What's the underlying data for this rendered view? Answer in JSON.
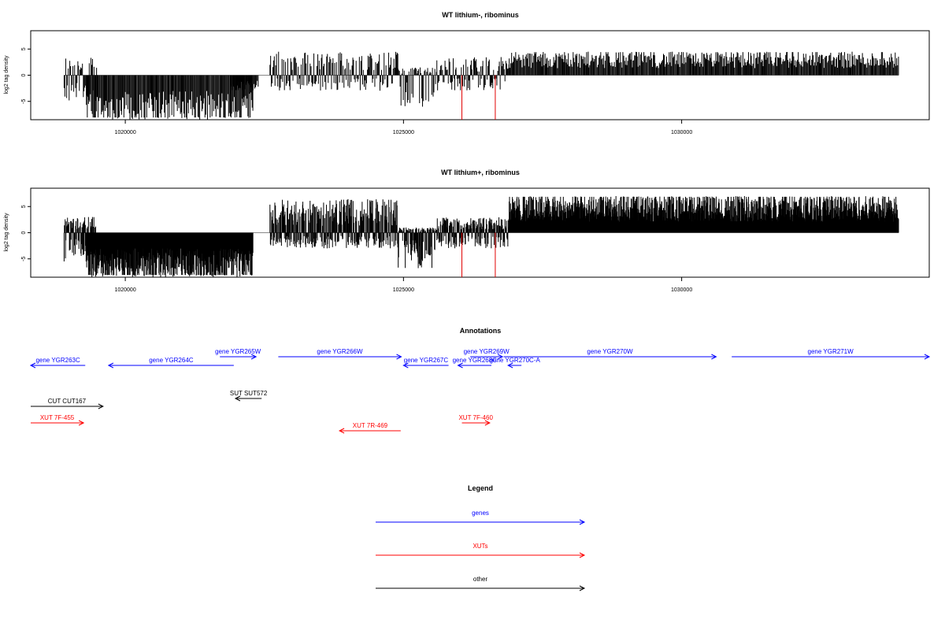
{
  "chart_data": [
    {
      "type": "bar",
      "title": "WT lithium-, ribominus",
      "ylabel": "log2 tag density",
      "xlabel": "",
      "xlim": [
        1018300,
        1034450
      ],
      "ylim": [
        -8.5,
        8.5
      ],
      "x_ticks": [
        "1020000",
        "1025000",
        "1030000"
      ],
      "y_ticks": [
        "-5",
        "0",
        "5"
      ],
      "baseline_range": [
        1018900,
        1033900
      ],
      "density": "sparse",
      "segments": [
        {
          "start": 1018900,
          "end": 1019500,
          "min": -5.5,
          "max": 3.5
        },
        {
          "start": 1019300,
          "end": 1022300,
          "min": -8.5,
          "max": 0
        },
        {
          "start": 1021900,
          "end": 1022400,
          "min": -3,
          "max": 0.5
        },
        {
          "start": 1022600,
          "end": 1024900,
          "min": -3,
          "max": 4.5
        },
        {
          "start": 1024900,
          "end": 1025600,
          "min": -6.5,
          "max": 1.5
        },
        {
          "start": 1025600,
          "end": 1026900,
          "min": -3,
          "max": 3.5
        },
        {
          "start": 1026900,
          "end": 1033900,
          "min": 0,
          "max": 4.5
        }
      ],
      "highlights": [
        {
          "x": 1026050,
          "value": -8.5,
          "color": "#e00000"
        },
        {
          "x": 1026650,
          "value": -8.5,
          "color": "#e00000"
        }
      ]
    },
    {
      "type": "bar",
      "title": "WT lithium+, ribominus",
      "ylabel": "log2 tag density",
      "xlabel": "",
      "xlim": [
        1018300,
        1034450
      ],
      "ylim": [
        -8.5,
        8.5
      ],
      "x_ticks": [
        "1020000",
        "1025000",
        "1030000"
      ],
      "y_ticks": [
        "-5",
        "0",
        "5"
      ],
      "baseline_range": [
        1018900,
        1033900
      ],
      "density": "dense",
      "segments": [
        {
          "start": 1018900,
          "end": 1019500,
          "min": -5.5,
          "max": 3
        },
        {
          "start": 1019300,
          "end": 1022300,
          "min": -8.5,
          "max": 0
        },
        {
          "start": 1022600,
          "end": 1024900,
          "min": -3,
          "max": 6.5
        },
        {
          "start": 1024900,
          "end": 1025600,
          "min": -7,
          "max": 1
        },
        {
          "start": 1025600,
          "end": 1026900,
          "min": -3,
          "max": 3
        },
        {
          "start": 1026900,
          "end": 1033900,
          "min": 0,
          "max": 7
        }
      ],
      "highlights": [
        {
          "x": 1026050,
          "value": -8.5,
          "color": "#e00000"
        },
        {
          "x": 1026650,
          "value": -8.5,
          "color": "#e00000"
        }
      ]
    }
  ],
  "annotations": {
    "title": "Annotations",
    "colors": {
      "gene": "#0000ff",
      "xut": "#ff0000",
      "other": "#000000"
    },
    "items": [
      {
        "label": "gene YGR263C",
        "kind": "gene",
        "strand": "-",
        "row": 1,
        "start": 1018300,
        "end": 1019280
      },
      {
        "label": "gene YGR264C",
        "kind": "gene",
        "strand": "-",
        "row": 1,
        "start": 1019700,
        "end": 1021950
      },
      {
        "label": "gene YGR265W",
        "kind": "gene",
        "strand": "+",
        "row": 0,
        "start": 1021700,
        "end": 1022350
      },
      {
        "label": "gene YGR266W",
        "kind": "gene",
        "strand": "+",
        "row": 0,
        "start": 1022750,
        "end": 1024960
      },
      {
        "label": "gene YGR267C",
        "kind": "gene",
        "strand": "-",
        "row": 1,
        "start": 1025000,
        "end": 1025810
      },
      {
        "label": "gene YGR268C",
        "kind": "gene",
        "strand": "-",
        "row": 1,
        "start": 1025980,
        "end": 1026580
      },
      {
        "label": "gene YGR269W",
        "kind": "gene",
        "strand": "+",
        "row": 0,
        "start": 1026200,
        "end": 1026780
      },
      {
        "label": "gene YGR270C-A",
        "kind": "gene",
        "strand": "-",
        "row": 1,
        "start": 1026880,
        "end": 1027120
      },
      {
        "label": "gene YGR270W",
        "kind": "gene",
        "strand": "+",
        "row": 0,
        "start": 1026800,
        "end": 1030620
      },
      {
        "label": "gene YGR271W",
        "kind": "gene",
        "strand": "+",
        "row": 0,
        "start": 1030900,
        "end": 1034450
      },
      {
        "label": "CUT CUT167",
        "kind": "other",
        "strand": "+",
        "row": 3,
        "start": 1018300,
        "end": 1019600
      },
      {
        "label": "SUT SUT572",
        "kind": "other",
        "strand": "-",
        "row": 2,
        "start": 1021980,
        "end": 1022450
      },
      {
        "label": "XUT 7F-455",
        "kind": "xut",
        "strand": "+",
        "row": 4,
        "start": 1018300,
        "end": 1019250
      },
      {
        "label": "XUT 7R-469",
        "kind": "xut",
        "strand": "-",
        "row": 5,
        "start": 1023850,
        "end": 1024950
      },
      {
        "label": "XUT 7F-460",
        "kind": "xut",
        "strand": "+",
        "row": 4,
        "start": 1026050,
        "end": 1026550
      }
    ]
  },
  "legend": {
    "title": "Legend",
    "items": [
      {
        "label": "genes",
        "color": "#0000ff"
      },
      {
        "label": "XUTs",
        "color": "#ff0000"
      },
      {
        "label": "other",
        "color": "#000000"
      }
    ]
  }
}
